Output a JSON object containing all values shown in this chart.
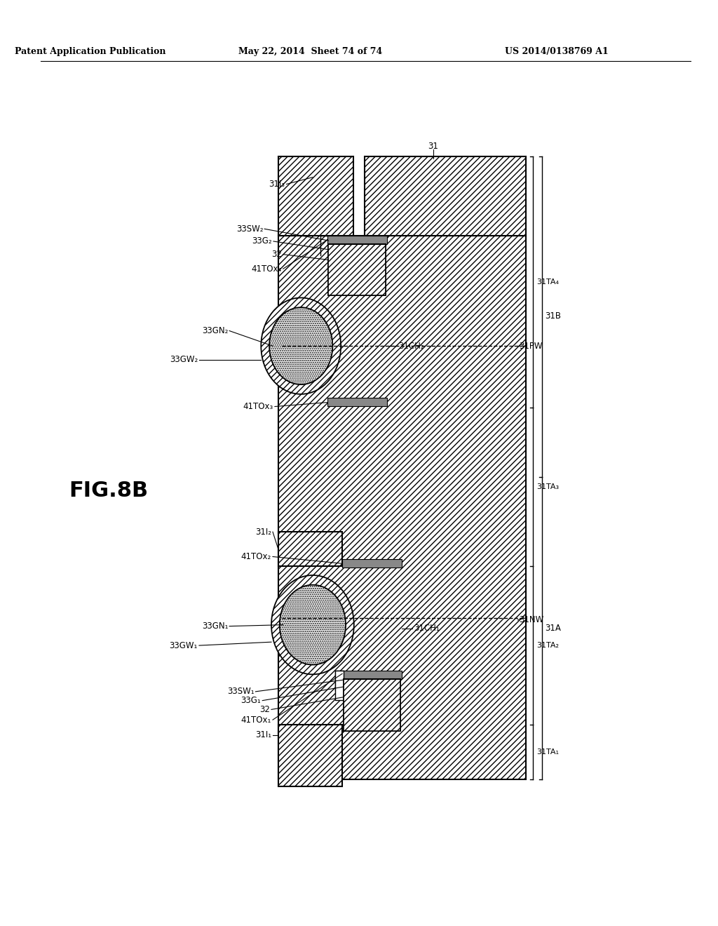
{
  "header_left": "Patent Application Publication",
  "header_center": "May 22, 2014  Sheet 74 of 74",
  "header_right": "US 2014/0138769 A1",
  "fig_label": "FIG.8B",
  "bg_color": "#ffffff"
}
